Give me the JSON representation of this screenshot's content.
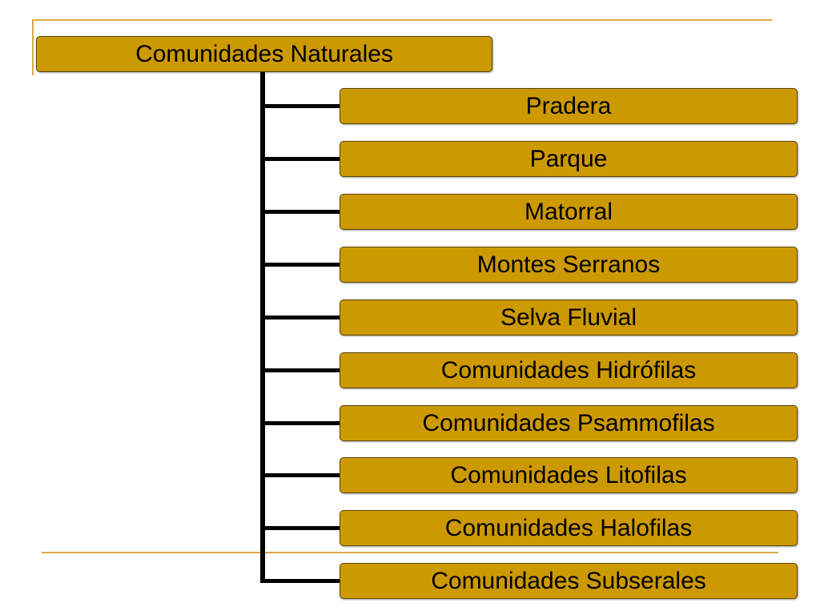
{
  "diagram": {
    "root": {
      "label": "Comunidades Naturales"
    },
    "children": [
      {
        "label": "Pradera"
      },
      {
        "label": "Parque"
      },
      {
        "label": "Matorral"
      },
      {
        "label": "Montes Serranos"
      },
      {
        "label": "Selva Fluvial"
      },
      {
        "label": "Comunidades Hidrófilas"
      },
      {
        "label": "Comunidades Psammofilas"
      },
      {
        "label": "Comunidades Litofilas"
      },
      {
        "label": "Comunidades Halofilas"
      },
      {
        "label": "Comunidades Subserales"
      }
    ]
  },
  "colors": {
    "box_fill": "#cc9900",
    "connector": "#000000",
    "accent_line": "#d7a94a"
  }
}
